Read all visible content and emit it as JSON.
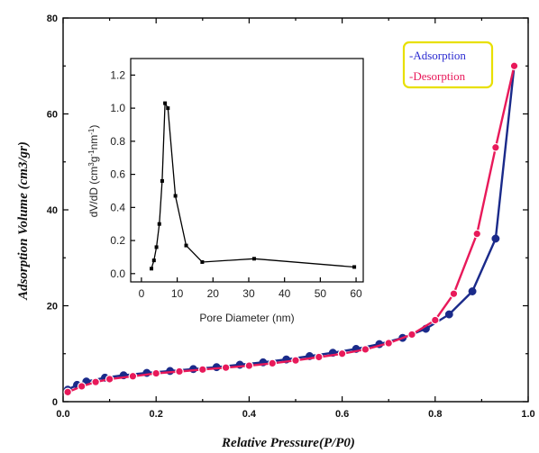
{
  "chart_data": [
    {
      "type": "line",
      "xlabel": "Relative Pressure(P/P0)",
      "ylabel": "Adsorption Volume (cm3/gr)",
      "xlim": [
        0.0,
        1.0
      ],
      "ylim": [
        0,
        80
      ],
      "x_ticks": [
        "0.0",
        "0.2",
        "0.4",
        "0.6",
        "0.8",
        "1.0"
      ],
      "y_ticks": [
        "0",
        "20",
        "40",
        "60",
        "80"
      ],
      "legend_placement": "top-right",
      "series": [
        {
          "name": "-Adsorption",
          "color": "#1a2a8a",
          "x": [
            0.01,
            0.03,
            0.05,
            0.09,
            0.13,
            0.18,
            0.23,
            0.28,
            0.33,
            0.38,
            0.43,
            0.48,
            0.53,
            0.58,
            0.63,
            0.68,
            0.73,
            0.78,
            0.83,
            0.88,
            0.93,
            0.97
          ],
          "y": [
            2.5,
            3.5,
            4.2,
            5.0,
            5.5,
            6.0,
            6.4,
            6.8,
            7.2,
            7.7,
            8.2,
            8.8,
            9.5,
            10.2,
            11.0,
            12.0,
            13.3,
            15.2,
            18.2,
            23.0,
            34.0,
            70.0
          ]
        },
        {
          "name": "-Desorption",
          "color": "#e8195a",
          "x": [
            0.01,
            0.04,
            0.07,
            0.1,
            0.15,
            0.2,
            0.25,
            0.3,
            0.35,
            0.4,
            0.45,
            0.5,
            0.55,
            0.6,
            0.65,
            0.7,
            0.75,
            0.8,
            0.84,
            0.89,
            0.93,
            0.97
          ],
          "y": [
            2.0,
            3.2,
            4.1,
            4.7,
            5.3,
            5.9,
            6.3,
            6.7,
            7.1,
            7.5,
            8.0,
            8.6,
            9.3,
            10.0,
            10.9,
            12.2,
            14.0,
            17.0,
            22.5,
            35.0,
            53.0,
            70.0
          ]
        }
      ]
    },
    {
      "type": "line",
      "xlabel": "Pore Diameter (nm)",
      "ylabel": "dV/dD (cm3g-1nm-1)",
      "xlim": [
        -3,
        62
      ],
      "ylim": [
        -0.05,
        1.3
      ],
      "x_ticks": [
        "0",
        "10",
        "20",
        "30",
        "40",
        "50",
        "60"
      ],
      "y_ticks": [
        "0.0",
        "0.2",
        "0.4",
        "0.6",
        "0.8",
        "1.0",
        "1.2"
      ],
      "series": [
        {
          "color": "#000000",
          "x": [
            2.8,
            3.5,
            4.2,
            5.0,
            5.8,
            6.6,
            7.4,
            9.5,
            12.5,
            17.0,
            31.5,
            59.5
          ],
          "y": [
            0.03,
            0.08,
            0.16,
            0.3,
            0.56,
            1.03,
            1.0,
            0.47,
            0.17,
            0.07,
            0.09,
            0.04
          ]
        }
      ]
    }
  ],
  "ylabel_parts": {
    "prefix": "dV/dD (cm",
    "sup1": "3",
    "mid1": "g",
    "sup2": "-1",
    "mid2": "nm",
    "sup3": "-1",
    "suffix": ")"
  }
}
